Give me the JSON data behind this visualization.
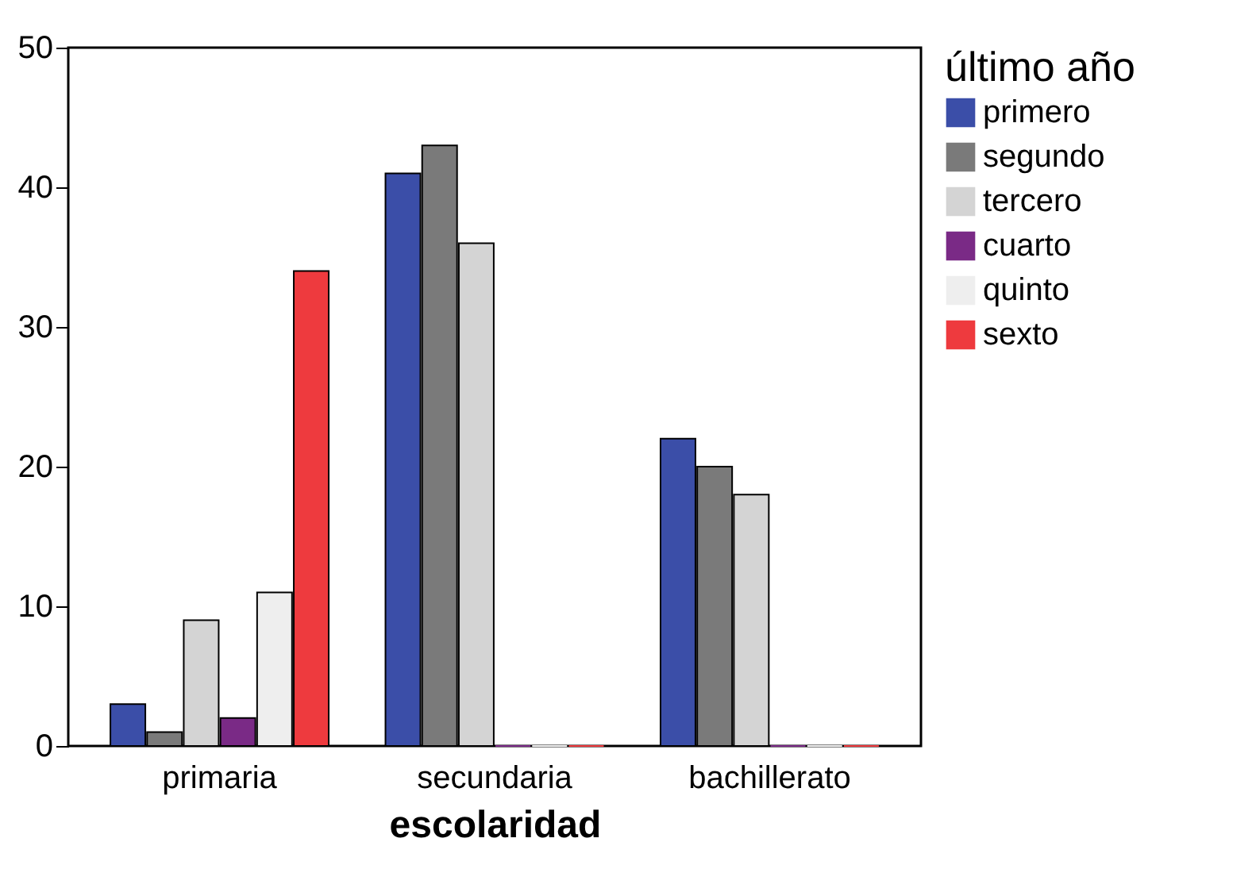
{
  "chart_data": {
    "type": "bar",
    "xlabel": "escolaridad",
    "legend_title": "último año",
    "categories": [
      "primaria",
      "secundaria",
      "bachillerato"
    ],
    "series": [
      {
        "name": "primero",
        "color": "#3b4ea8",
        "values": [
          3,
          41,
          22
        ]
      },
      {
        "name": "segundo",
        "color": "#7a7a7a",
        "values": [
          1,
          43,
          20
        ]
      },
      {
        "name": "tercero",
        "color": "#d4d4d4",
        "values": [
          9,
          36,
          18
        ]
      },
      {
        "name": "cuarto",
        "color": "#7a2a86",
        "values": [
          2,
          0,
          0
        ]
      },
      {
        "name": "quinto",
        "color": "#eeeeee",
        "values": [
          11,
          0,
          0
        ]
      },
      {
        "name": "sexto",
        "color": "#ee3a3e",
        "values": [
          34,
          0,
          0
        ]
      }
    ],
    "ylim": [
      0,
      50
    ],
    "yticks": [
      0,
      10,
      20,
      30,
      40,
      50
    ],
    "grid": false,
    "legend": "top right"
  }
}
